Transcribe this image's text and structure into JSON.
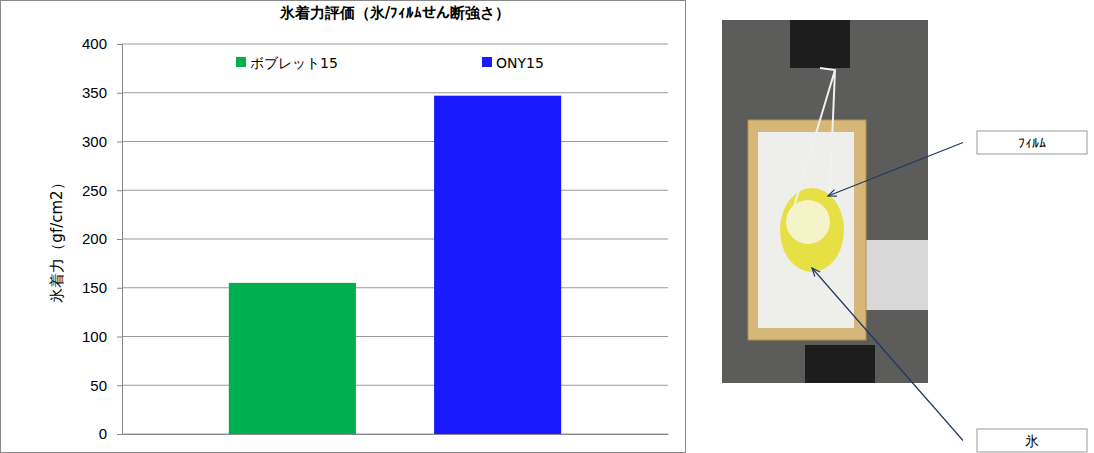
{
  "chart_data": {
    "type": "bar",
    "title": "氷着力評価（氷/ﾌｨﾙﾑせん断強さ）",
    "y_label": "氷着力（gf/cm2）",
    "categories": [
      null,
      null
    ],
    "series": [
      {
        "name": "ボブレット15",
        "color": "#00b050",
        "values": [
          155,
          null
        ]
      },
      {
        "name": "ONY15",
        "color": "#1a1aff",
        "values": [
          null,
          347
        ]
      }
    ],
    "ylim": [
      0,
      400
    ],
    "yticks": [
      0,
      50,
      100,
      150,
      200,
      250,
      300,
      350,
      400
    ],
    "grid": true,
    "legend": "top",
    "annotations": [
      "ﾌｨﾙﾑ",
      "氷"
    ]
  }
}
